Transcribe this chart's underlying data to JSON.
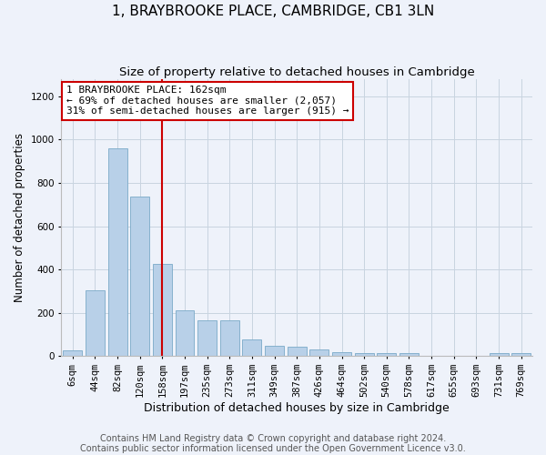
{
  "title": "1, BRAYBROOKE PLACE, CAMBRIDGE, CB1 3LN",
  "subtitle": "Size of property relative to detached houses in Cambridge",
  "xlabel": "Distribution of detached houses by size in Cambridge",
  "ylabel": "Number of detached properties",
  "footer_line1": "Contains HM Land Registry data © Crown copyright and database right 2024.",
  "footer_line2": "Contains public sector information licensed under the Open Government Licence v3.0.",
  "bar_labels": [
    "6sqm",
    "44sqm",
    "82sqm",
    "120sqm",
    "158sqm",
    "197sqm",
    "235sqm",
    "273sqm",
    "311sqm",
    "349sqm",
    "387sqm",
    "426sqm",
    "464sqm",
    "502sqm",
    "540sqm",
    "578sqm",
    "617sqm",
    "655sqm",
    "693sqm",
    "731sqm",
    "769sqm"
  ],
  "bar_values": [
    25,
    305,
    960,
    735,
    425,
    210,
    165,
    165,
    75,
    48,
    45,
    30,
    20,
    12,
    12,
    12,
    0,
    0,
    0,
    12,
    15
  ],
  "bar_color": "#b8d0e8",
  "bar_edgecolor": "#7aaac8",
  "vline_x_index": 4,
  "vline_color": "#cc0000",
  "annotation_line1": "1 BRAYBROOKE PLACE: 162sqm",
  "annotation_line2": "← 69% of detached houses are smaller (2,057)",
  "annotation_line3": "31% of semi-detached houses are larger (915) →",
  "annotation_box_edgecolor": "#cc0000",
  "annotation_box_facecolor": "white",
  "ylim_max": 1280,
  "yticks": [
    0,
    200,
    400,
    600,
    800,
    1000,
    1200
  ],
  "grid_color": "#c8d4e0",
  "bg_color": "#eef2fa",
  "title_fontsize": 11,
  "subtitle_fontsize": 9.5,
  "xlabel_fontsize": 9,
  "ylabel_fontsize": 8.5,
  "tick_fontsize": 7.5,
  "footer_fontsize": 7,
  "annot_fontsize": 8
}
